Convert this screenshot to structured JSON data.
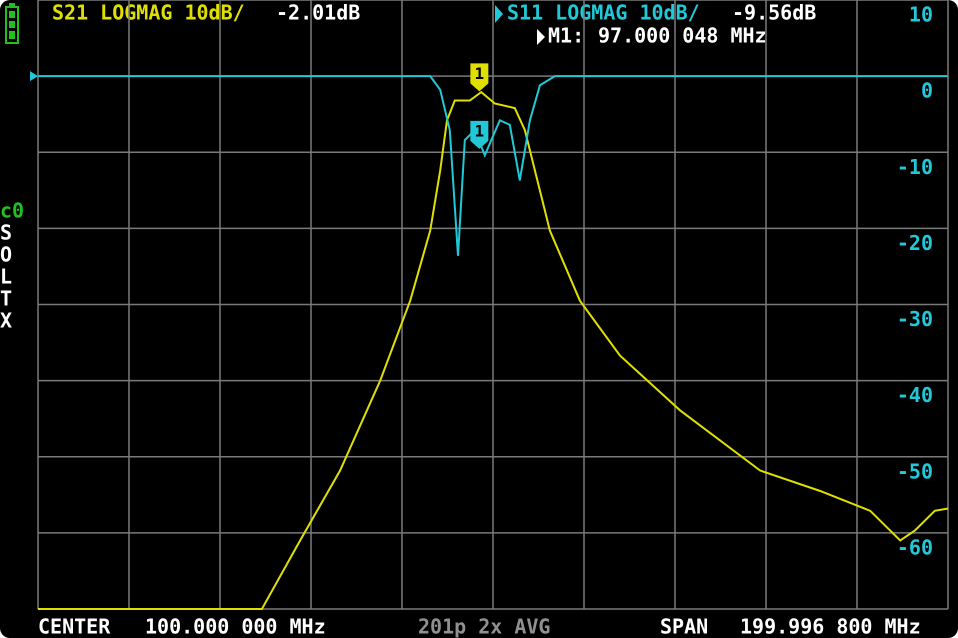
{
  "chart_data": {
    "type": "line",
    "xlim": [
      0.0016,
      199.9984
    ],
    "ylim": [
      -70,
      10
    ],
    "yticks": [
      10,
      0,
      -10,
      -20,
      -30,
      -40,
      -50,
      -60
    ],
    "grid": true,
    "series": [
      {
        "name": "S21 LOGMAG 10dB/",
        "color": "#e0e000",
        "marker_value": -2.01,
        "marker_value_label": "-2.01dB",
        "x": [
          0.0016,
          49.2,
          57.6,
          66.4,
          75.2,
          81.8,
          86.2,
          88.4,
          89.9,
          91.6,
          94.9,
          97.4,
          100.4,
          104.8,
          107,
          109.2,
          112.5,
          119.1,
          127.9,
          141.1,
          158.7,
          171.9,
          182.9,
          189.5,
          192.7,
          197.1,
          199.9984
        ],
        "values": [
          -70,
          -70,
          -61,
          -51.8,
          -40,
          -29.5,
          -20.3,
          -12.4,
          -5.8,
          -3.2,
          -3.2,
          -2.1,
          -3.6,
          -4.2,
          -7.1,
          -12.4,
          -20.3,
          -29.5,
          -36.7,
          -43.9,
          -51.8,
          -54.5,
          -57.1,
          -61,
          -59.7,
          -57.1,
          -56.8
        ]
      },
      {
        "name": "S11 LOGMAG 10dB/",
        "color": "#20c8d8",
        "marker_value": -9.56,
        "marker_value_label": "-9.56dB",
        "x": [
          0.0016,
          86.2,
          88.4,
          90.5,
          92.3,
          93.8,
          96,
          98.2,
          101.5,
          103.7,
          105.9,
          108.1,
          110.3,
          113.6,
          199.9984
        ],
        "values": [
          0,
          0,
          -1.8,
          -7.1,
          -23.6,
          -8.4,
          -7.1,
          -10.4,
          -5.8,
          -6.4,
          -13.7,
          -5.8,
          -1.2,
          0,
          0
        ]
      }
    ],
    "markers": [
      {
        "label": "1",
        "name": "M1:",
        "x": 97.000048,
        "x_label": "97.000 048 MHz"
      }
    ],
    "cal_status": [
      "c0",
      "S",
      "O",
      "L",
      "T",
      "X"
    ],
    "footer": {
      "center_label": "CENTER",
      "center": "100.000 000 MHz",
      "info": "201p 2x AVG",
      "span_label": "SPAN",
      "span": "199.996 800 MHz"
    }
  }
}
